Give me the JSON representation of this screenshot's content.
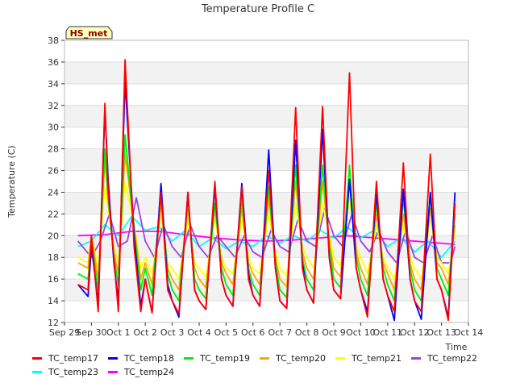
{
  "chart_data": {
    "type": "line",
    "title": "Temperature Profile C",
    "xlabel": "Time",
    "ylabel": "Temperature (C)",
    "annotation": "HS_met",
    "x_tick_labels": [
      "Sep 29",
      "Sep 30",
      "Oct 1",
      "Oct 2",
      "Oct 3",
      "Oct 4",
      "Oct 5",
      "Oct 6",
      "Oct 7",
      "Oct 8",
      "Oct 9",
      "Oct 10",
      "Oct 11",
      "Oct 12",
      "Oct 13",
      "Oct 14"
    ],
    "y_ticks": [
      12,
      14,
      16,
      18,
      20,
      22,
      24,
      26,
      28,
      30,
      32,
      34,
      36,
      38
    ],
    "ylim": [
      12,
      38
    ],
    "xlim": [
      "Sep 29",
      "Oct 14"
    ],
    "grid": "horizontal bands",
    "legend_position": "bottom",
    "series": [
      {
        "name": "TC_temp17",
        "color": "#ff0000",
        "x": [
          "Sep 29 12:00",
          "Sep 29 21:00",
          "Sep 30 00:00",
          "Sep 30 06:00",
          "Sep 30 12:00",
          "Sep 30 15:00",
          "Sep 30 20:00",
          "Oct 1 00:00",
          "Oct 1 06:00",
          "Oct 1 14:00",
          "Oct 1 20:00",
          "Oct 2 00:00",
          "Oct 2 06:00",
          "Oct 2 14:00",
          "Oct 2 20:00",
          "Oct 3 00:00",
          "Oct 3 06:00",
          "Oct 3 14:00",
          "Oct 3 20:00",
          "Oct 4 00:00",
          "Oct 4 06:00",
          "Oct 4 14:00",
          "Oct 4 20:00",
          "Oct 5 00:00",
          "Oct 5 06:00",
          "Oct 5 14:00",
          "Oct 5 20:00",
          "Oct 6 00:00",
          "Oct 6 06:00",
          "Oct 6 14:00",
          "Oct 6 20:00",
          "Oct 7 00:00",
          "Oct 7 06:00",
          "Oct 7 14:00",
          "Oct 7 20:00",
          "Oct 8 00:00",
          "Oct 8 06:00",
          "Oct 8 14:00",
          "Oct 8 20:00",
          "Oct 9 00:00",
          "Oct 9 06:00",
          "Oct 9 14:00",
          "Oct 9 20:00",
          "Oct 10 00:00",
          "Oct 10 06:00",
          "Oct 10 14:00",
          "Oct 10 20:00",
          "Oct 11 00:00",
          "Oct 11 06:00",
          "Oct 11 14:00",
          "Oct 11 20:00",
          "Oct 12 00:00",
          "Oct 12 06:00",
          "Oct 12 14:00",
          "Oct 12 20:00",
          "Oct 13 00:00",
          "Oct 13 06:00",
          "Oct 13 12:00"
        ],
        "y": [
          15.5,
          15.0,
          20.0,
          13.0,
          32.2,
          24.0,
          18.0,
          13.0,
          36.2,
          19.0,
          13.0,
          16.0,
          12.9,
          24.0,
          15.0,
          14.0,
          12.8,
          24.0,
          15.0,
          14.0,
          13.2,
          25.0,
          16.0,
          14.5,
          13.5,
          24.5,
          16.0,
          14.5,
          13.5,
          26.0,
          17.0,
          14.0,
          13.3,
          31.8,
          17.0,
          15.0,
          13.8,
          31.9,
          18.0,
          15.0,
          14.2,
          35.0,
          17.0,
          15.0,
          12.5,
          25.0,
          16.0,
          14.5,
          13.0,
          26.7,
          16.0,
          14.0,
          13.0,
          27.5,
          16.0,
          15.0,
          12.2,
          23.0
        ]
      },
      {
        "name": "TC_temp18",
        "color": "#0000ff",
        "x": [
          "Sep 29 12:00",
          "Sep 29 21:00",
          "Sep 30 00:00",
          "Sep 30 06:00",
          "Sep 30 12:00",
          "Sep 30 15:00",
          "Sep 30 20:00",
          "Oct 1 00:00",
          "Oct 1 06:00",
          "Oct 1 14:00",
          "Oct 1 20:00",
          "Oct 2 00:00",
          "Oct 2 06:00",
          "Oct 2 14:00",
          "Oct 2 20:00",
          "Oct 3 00:00",
          "Oct 3 06:00",
          "Oct 3 14:00",
          "Oct 3 20:00",
          "Oct 4 00:00",
          "Oct 4 06:00",
          "Oct 4 14:00",
          "Oct 4 20:00",
          "Oct 5 00:00",
          "Oct 5 06:00",
          "Oct 5 14:00",
          "Oct 5 20:00",
          "Oct 6 00:00",
          "Oct 6 06:00",
          "Oct 6 14:00",
          "Oct 6 20:00",
          "Oct 7 00:00",
          "Oct 7 06:00",
          "Oct 7 14:00",
          "Oct 7 20:00",
          "Oct 8 00:00",
          "Oct 8 06:00",
          "Oct 8 14:00",
          "Oct 8 20:00",
          "Oct 9 00:00",
          "Oct 9 06:00",
          "Oct 9 14:00",
          "Oct 9 20:00",
          "Oct 10 00:00",
          "Oct 10 06:00",
          "Oct 10 14:00",
          "Oct 10 20:00",
          "Oct 11 00:00",
          "Oct 11 06:00",
          "Oct 11 14:00",
          "Oct 11 20:00",
          "Oct 12 00:00",
          "Oct 12 06:00",
          "Oct 12 14:00",
          "Oct 12 20:00",
          "Oct 13 00:00",
          "Oct 13 06:00",
          "Oct 13 12:00"
        ],
        "y": [
          15.5,
          14.4,
          19.0,
          13.8,
          31.6,
          25.0,
          17.5,
          14.0,
          34.3,
          20.0,
          13.5,
          16.0,
          12.9,
          24.8,
          15.5,
          14.0,
          12.5,
          24.0,
          15.0,
          14.0,
          13.2,
          24.5,
          16.0,
          14.5,
          13.5,
          24.8,
          16.5,
          14.5,
          13.5,
          27.9,
          17.0,
          14.0,
          13.3,
          28.8,
          17.5,
          15.0,
          13.8,
          29.8,
          18.0,
          15.0,
          14.2,
          25.2,
          17.0,
          15.0,
          13.0,
          24.0,
          16.0,
          14.5,
          12.2,
          24.3,
          16.0,
          14.0,
          12.3,
          24.0,
          16.0,
          15.0,
          12.5,
          24.0
        ]
      },
      {
        "name": "TC_temp19",
        "color": "#00ee00",
        "x": [
          "Sep 29 12:00",
          "Sep 29 21:00",
          "Sep 30 00:00",
          "Sep 30 06:00",
          "Sep 30 12:00",
          "Sep 30 15:00",
          "Sep 30 20:00",
          "Oct 1 00:00",
          "Oct 1 06:00",
          "Oct 1 14:00",
          "Oct 1 20:00",
          "Oct 2 00:00",
          "Oct 2 06:00",
          "Oct 2 14:00",
          "Oct 2 20:00",
          "Oct 3 00:00",
          "Oct 3 06:00",
          "Oct 3 14:00",
          "Oct 3 20:00",
          "Oct 4 00:00",
          "Oct 4 06:00",
          "Oct 4 14:00",
          "Oct 4 20:00",
          "Oct 5 00:00",
          "Oct 5 06:00",
          "Oct 5 14:00",
          "Oct 5 20:00",
          "Oct 6 00:00",
          "Oct 6 06:00",
          "Oct 6 14:00",
          "Oct 6 20:00",
          "Oct 7 00:00",
          "Oct 7 06:00",
          "Oct 7 14:00",
          "Oct 7 20:00",
          "Oct 8 00:00",
          "Oct 8 06:00",
          "Oct 8 14:00",
          "Oct 8 20:00",
          "Oct 9 00:00",
          "Oct 9 06:00",
          "Oct 9 14:00",
          "Oct 9 20:00",
          "Oct 10 00:00",
          "Oct 10 06:00",
          "Oct 10 14:00",
          "Oct 10 20:00",
          "Oct 11 00:00",
          "Oct 11 06:00",
          "Oct 11 14:00",
          "Oct 11 20:00",
          "Oct 12 00:00",
          "Oct 12 06:00",
          "Oct 12 14:00",
          "Oct 12 20:00",
          "Oct 13 00:00",
          "Oct 13 06:00",
          "Oct 13 12:00"
        ],
        "y": [
          16.5,
          16.0,
          19.5,
          15.0,
          28.0,
          23.5,
          18.0,
          15.5,
          29.3,
          20.5,
          15.0,
          17.0,
          14.5,
          23.8,
          16.5,
          15.0,
          14.0,
          23.5,
          16.0,
          15.0,
          14.2,
          23.0,
          17.0,
          15.5,
          14.5,
          23.5,
          17.0,
          15.5,
          14.5,
          24.5,
          17.5,
          15.0,
          14.3,
          26.5,
          18.0,
          16.0,
          15.0,
          26.5,
          19.0,
          16.0,
          15.2,
          26.5,
          18.0,
          16.0,
          14.5,
          23.0,
          17.0,
          15.5,
          14.0,
          23.5,
          17.0,
          15.0,
          14.0,
          24.0,
          17.0,
          16.0,
          14.5,
          22.0
        ]
      },
      {
        "name": "TC_temp20",
        "color": "#ffa500",
        "x": [
          "Sep 29 12:00",
          "Sep 29 21:00",
          "Sep 30 00:00",
          "Sep 30 06:00",
          "Sep 30 12:00",
          "Sep 30 15:00",
          "Sep 30 20:00",
          "Oct 1 00:00",
          "Oct 1 06:00",
          "Oct 1 14:00",
          "Oct 1 20:00",
          "Oct 2 00:00",
          "Oct 2 06:00",
          "Oct 2 14:00",
          "Oct 2 20:00",
          "Oct 3 00:00",
          "Oct 3 06:00",
          "Oct 3 14:00",
          "Oct 3 20:00",
          "Oct 4 00:00",
          "Oct 4 06:00",
          "Oct 4 14:00",
          "Oct 4 20:00",
          "Oct 5 00:00",
          "Oct 5 06:00",
          "Oct 5 14:00",
          "Oct 5 20:00",
          "Oct 6 00:00",
          "Oct 6 06:00",
          "Oct 6 14:00",
          "Oct 6 20:00",
          "Oct 7 00:00",
          "Oct 7 06:00",
          "Oct 7 14:00",
          "Oct 7 20:00",
          "Oct 8 00:00",
          "Oct 8 06:00",
          "Oct 8 14:00",
          "Oct 8 20:00",
          "Oct 9 00:00",
          "Oct 9 06:00",
          "Oct 9 14:00",
          "Oct 9 20:00",
          "Oct 10 00:00",
          "Oct 10 06:00",
          "Oct 10 14:00",
          "Oct 10 20:00",
          "Oct 11 00:00",
          "Oct 11 06:00",
          "Oct 11 14:00",
          "Oct 11 20:00",
          "Oct 12 00:00",
          "Oct 12 06:00",
          "Oct 12 14:00",
          "Oct 12 20:00",
          "Oct 13 00:00",
          "Oct 13 06:00",
          "Oct 13 12:00"
        ],
        "y": [
          17.5,
          17.0,
          20.0,
          16.0,
          27.0,
          23.0,
          18.5,
          16.5,
          27.5,
          21.0,
          16.0,
          17.5,
          15.5,
          23.0,
          17.0,
          16.0,
          15.0,
          22.5,
          17.0,
          16.0,
          15.2,
          22.5,
          17.5,
          16.5,
          15.5,
          22.5,
          17.5,
          16.5,
          15.5,
          23.5,
          18.0,
          16.0,
          15.3,
          25.0,
          18.5,
          17.0,
          16.0,
          25.0,
          19.5,
          17.0,
          16.2,
          25.0,
          18.5,
          17.0,
          15.5,
          22.0,
          17.5,
          16.5,
          15.0,
          22.0,
          17.5,
          16.0,
          15.0,
          22.5,
          17.5,
          17.0,
          15.5,
          21.0
        ]
      },
      {
        "name": "TC_temp21",
        "color": "#ffff00",
        "x": [
          "Sep 29 12:00",
          "Sep 29 21:00",
          "Sep 30 00:00",
          "Sep 30 06:00",
          "Sep 30 12:00",
          "Sep 30 15:00",
          "Sep 30 20:00",
          "Oct 1 00:00",
          "Oct 1 06:00",
          "Oct 1 14:00",
          "Oct 1 20:00",
          "Oct 2 00:00",
          "Oct 2 06:00",
          "Oct 2 14:00",
          "Oct 2 20:00",
          "Oct 3 00:00",
          "Oct 3 06:00",
          "Oct 3 14:00",
          "Oct 3 20:00",
          "Oct 4 00:00",
          "Oct 4 06:00",
          "Oct 4 14:00",
          "Oct 4 20:00",
          "Oct 5 00:00",
          "Oct 5 06:00",
          "Oct 5 14:00",
          "Oct 5 20:00",
          "Oct 6 00:00",
          "Oct 6 06:00",
          "Oct 6 14:00",
          "Oct 6 20:00",
          "Oct 7 00:00",
          "Oct 7 06:00",
          "Oct 7 14:00",
          "Oct 7 20:00",
          "Oct 8 00:00",
          "Oct 8 06:00",
          "Oct 8 14:00",
          "Oct 8 20:00",
          "Oct 9 00:00",
          "Oct 9 06:00",
          "Oct 9 14:00",
          "Oct 9 20:00",
          "Oct 10 00:00",
          "Oct 10 06:00",
          "Oct 10 14:00",
          "Oct 10 20:00",
          "Oct 11 00:00",
          "Oct 11 06:00",
          "Oct 11 14:00",
          "Oct 11 20:00",
          "Oct 12 00:00",
          "Oct 12 06:00",
          "Oct 12 14:00",
          "Oct 12 20:00",
          "Oct 13 00:00",
          "Oct 13 06:00",
          "Oct 13 12:00"
        ],
        "y": [
          18.0,
          17.5,
          20.0,
          17.0,
          24.5,
          22.5,
          19.0,
          17.5,
          25.0,
          21.0,
          17.0,
          18.0,
          16.5,
          22.0,
          17.5,
          17.0,
          16.0,
          21.5,
          17.5,
          17.0,
          16.2,
          21.5,
          18.0,
          17.0,
          16.5,
          21.5,
          18.0,
          17.0,
          16.5,
          22.0,
          18.5,
          17.0,
          16.3,
          23.0,
          19.0,
          18.0,
          17.0,
          23.0,
          20.0,
          18.0,
          17.2,
          23.5,
          19.0,
          18.0,
          16.5,
          21.0,
          18.0,
          17.0,
          16.0,
          21.0,
          18.0,
          17.0,
          16.0,
          21.5,
          18.0,
          17.5,
          16.5,
          20.5
        ]
      },
      {
        "name": "TC_temp22",
        "color": "#a040e0",
        "x": [
          "Sep 29 12:00",
          "Sep 30 00:00",
          "Sep 30 08:00",
          "Sep 30 16:00",
          "Oct 1 00:00",
          "Oct 1 08:00",
          "Oct 1 16:00",
          "Oct 2 00:00",
          "Oct 2 08:00",
          "Oct 2 16:00",
          "Oct 3 00:00",
          "Oct 3 08:00",
          "Oct 3 16:00",
          "Oct 4 00:00",
          "Oct 4 08:00",
          "Oct 4 16:00",
          "Oct 5 00:00",
          "Oct 5 08:00",
          "Oct 5 16:00",
          "Oct 6 00:00",
          "Oct 6 08:00",
          "Oct 6 16:00",
          "Oct 7 00:00",
          "Oct 7 08:00",
          "Oct 7 16:00",
          "Oct 8 00:00",
          "Oct 8 08:00",
          "Oct 8 16:00",
          "Oct 9 00:00",
          "Oct 9 08:00",
          "Oct 9 16:00",
          "Oct 10 00:00",
          "Oct 10 08:00",
          "Oct 10 16:00",
          "Oct 11 00:00",
          "Oct 11 08:00",
          "Oct 11 16:00",
          "Oct 12 00:00",
          "Oct 12 08:00",
          "Oct 12 16:00",
          "Oct 13 00:00",
          "Oct 13 08:00",
          "Oct 13 12:00"
        ],
        "y": [
          19.5,
          18.0,
          19.5,
          22.0,
          19.0,
          19.5,
          23.5,
          19.5,
          18.0,
          21.0,
          19.0,
          18.0,
          21.0,
          19.0,
          18.0,
          20.0,
          19.0,
          18.0,
          20.0,
          18.5,
          18.0,
          20.5,
          19.0,
          18.5,
          21.5,
          19.5,
          19.0,
          22.5,
          20.0,
          19.0,
          22.0,
          19.5,
          18.5,
          20.5,
          18.5,
          17.5,
          20.5,
          18.0,
          17.5,
          20.0,
          17.5,
          17.5,
          19.0
        ]
      },
      {
        "name": "TC_temp23",
        "color": "#00ffff",
        "x": [
          "Sep 29 12:00",
          "Sep 30 00:00",
          "Sep 30 12:00",
          "Oct 1 00:00",
          "Oct 1 12:00",
          "Oct 2 00:00",
          "Oct 2 12:00",
          "Oct 3 00:00",
          "Oct 3 12:00",
          "Oct 4 00:00",
          "Oct 4 12:00",
          "Oct 5 00:00",
          "Oct 5 12:00",
          "Oct 6 00:00",
          "Oct 6 12:00",
          "Oct 7 00:00",
          "Oct 7 12:00",
          "Oct 8 00:00",
          "Oct 8 12:00",
          "Oct 9 00:00",
          "Oct 9 12:00",
          "Oct 10 00:00",
          "Oct 10 12:00",
          "Oct 11 00:00",
          "Oct 11 12:00",
          "Oct 12 00:00",
          "Oct 12 12:00",
          "Oct 13 00:00",
          "Oct 13 12:00"
        ],
        "y": [
          19.0,
          19.5,
          21.0,
          20.0,
          21.8,
          20.5,
          20.8,
          19.5,
          20.5,
          19.0,
          19.8,
          18.8,
          19.5,
          19.0,
          20.0,
          19.3,
          20.0,
          19.5,
          20.5,
          19.8,
          20.8,
          19.8,
          20.5,
          19.0,
          19.8,
          18.5,
          19.5,
          18.0,
          19.5
        ]
      },
      {
        "name": "TC_temp24",
        "color": "#ff00ff",
        "x": [
          "Sep 29 12:00",
          "Sep 30 12:00",
          "Oct 1 12:00",
          "Oct 2 12:00",
          "Oct 3 12:00",
          "Oct 4 12:00",
          "Oct 5 12:00",
          "Oct 6 12:00",
          "Oct 7 12:00",
          "Oct 8 12:00",
          "Oct 9 12:00",
          "Oct 10 12:00",
          "Oct 11 12:00",
          "Oct 12 12:00",
          "Oct 13 12:00"
        ],
        "y": [
          20.0,
          20.1,
          20.4,
          20.4,
          20.1,
          19.8,
          19.6,
          19.5,
          19.6,
          19.8,
          20.0,
          19.8,
          19.6,
          19.4,
          19.2
        ]
      }
    ]
  }
}
